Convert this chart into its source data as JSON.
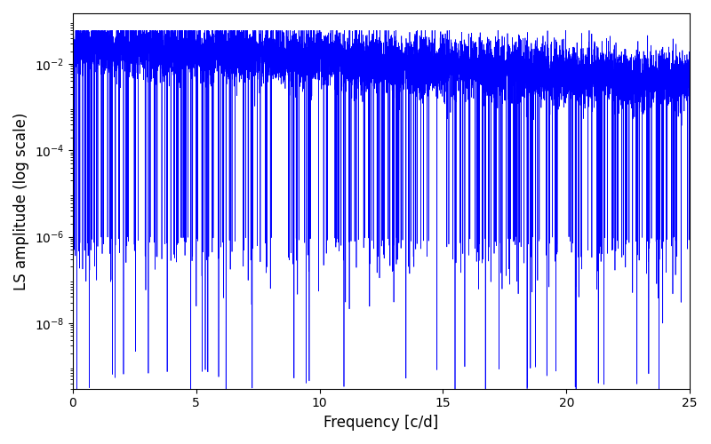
{
  "xlabel": "Frequency [c/d]",
  "ylabel": "LS amplitude (log scale)",
  "xlim": [
    0,
    25
  ],
  "ylim": [
    3e-10,
    0.15
  ],
  "line_color": "#0000ff",
  "line_width": 0.5,
  "figsize": [
    8.0,
    5.0
  ],
  "dpi": 100,
  "freq_max": 25.0,
  "n_points": 8000,
  "seed": 7
}
